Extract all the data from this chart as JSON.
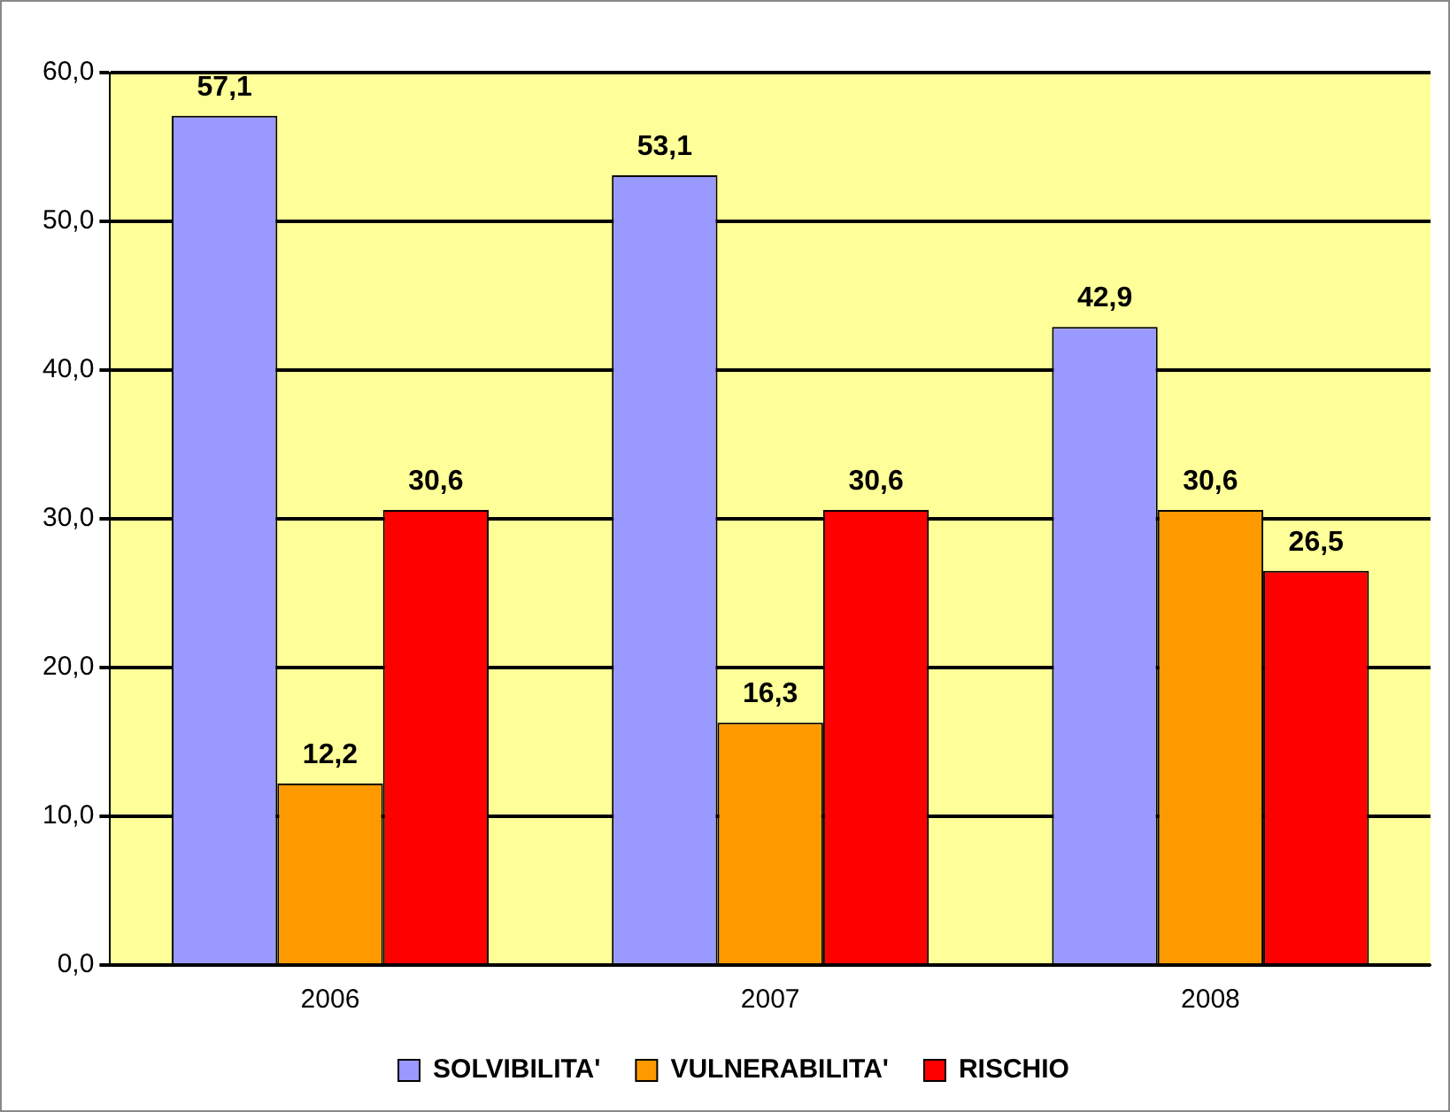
{
  "chart_data": {
    "type": "bar",
    "categories": [
      "2006",
      "2007",
      "2008"
    ],
    "series": [
      {
        "name": "SOLVIBILITA'",
        "color": "#9999ff",
        "values": [
          57.1,
          53.1,
          42.9
        ],
        "value_labels": [
          "57,1",
          "53,1",
          "42,9"
        ]
      },
      {
        "name": "VULNERABILITA'",
        "color": "#ff9900",
        "values": [
          12.2,
          16.3,
          30.6
        ],
        "value_labels": [
          "12,2",
          "16,3",
          "30,6"
        ]
      },
      {
        "name": "RISCHIO",
        "color": "#ff0000",
        "values": [
          30.6,
          30.6,
          26.5
        ],
        "value_labels": [
          "30,6",
          "30,6",
          "26,5"
        ]
      }
    ],
    "ylim": [
      0,
      60
    ],
    "yticks": [
      {
        "value": 0,
        "label": "0,0"
      },
      {
        "value": 10,
        "label": "10,0"
      },
      {
        "value": 20,
        "label": "20,0"
      },
      {
        "value": 30,
        "label": "30,0"
      },
      {
        "value": 40,
        "label": "40,0"
      },
      {
        "value": 50,
        "label": "50,0"
      },
      {
        "value": 60,
        "label": "60,0"
      }
    ],
    "grid": "y",
    "legend": "bottom"
  }
}
